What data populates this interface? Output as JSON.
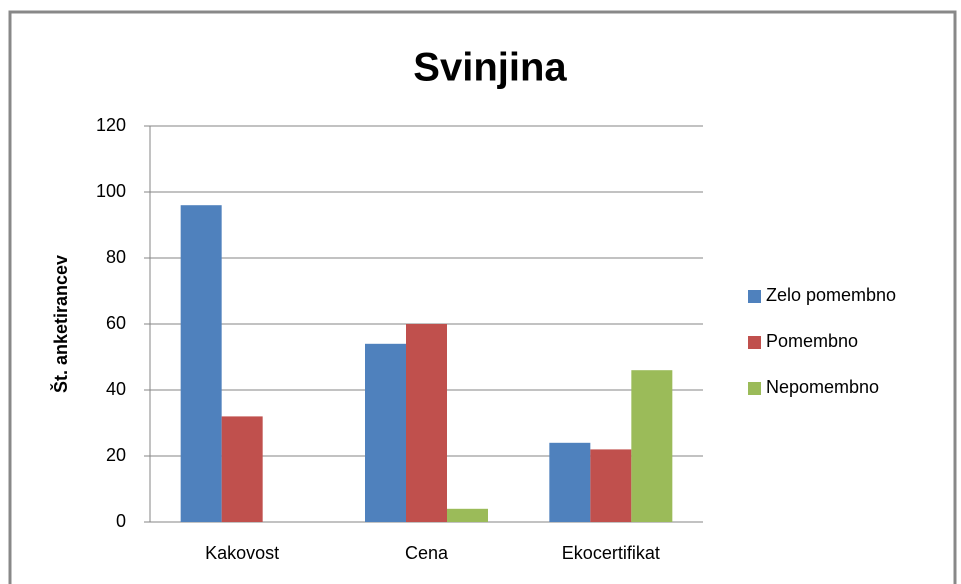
{
  "chart_data": {
    "type": "bar",
    "title": "Svinjina",
    "y_label": "Št. anketirancev",
    "categories": [
      "Kakovost",
      "Cena",
      "Ekocertifikat"
    ],
    "series": [
      {
        "name": "Zelo pomembno",
        "color": "#4f81bd",
        "values": [
          96,
          54,
          24
        ]
      },
      {
        "name": "Pomembno",
        "color": "#c0504d",
        "values": [
          32,
          60,
          22
        ]
      },
      {
        "name": "Nepomembno",
        "color": "#9bbb59",
        "values": [
          0,
          4,
          46
        ]
      }
    ],
    "ylim": [
      0,
      120
    ],
    "yticks": [
      0,
      20,
      40,
      60,
      80,
      100,
      120
    ],
    "grid": true,
    "legend": "right"
  }
}
